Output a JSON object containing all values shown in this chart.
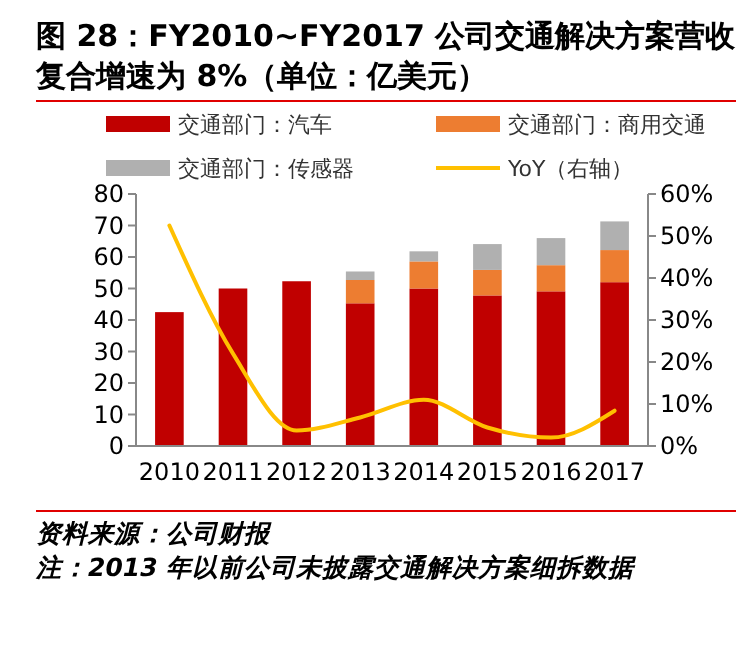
{
  "chart_data": {
    "type": "bar",
    "stacked": true,
    "title": "图 28：FY2010~FY2017 公司交通解决方案营收复合增速为 8%（单位：亿美元）",
    "categories": [
      "2010",
      "2011",
      "2012",
      "2013",
      "2014",
      "2015",
      "2016",
      "2017"
    ],
    "series": [
      {
        "name": "交通部门：汽车",
        "color": "#c00000",
        "values": [
          42.5,
          50,
          52.3,
          45.3,
          50,
          47.8,
          49.1,
          52
        ]
      },
      {
        "name": "交通部门：商用交通",
        "color": "#ed7d31",
        "values": [
          null,
          null,
          null,
          7.4,
          8.6,
          8.1,
          8.3,
          10.2
        ]
      },
      {
        "name": "交通部门：传感器",
        "color": "#b0b0b0",
        "values": [
          null,
          null,
          null,
          2.7,
          3.2,
          8.2,
          8.6,
          9.1
        ]
      },
      {
        "name": "YoY（右轴）",
        "type": "line",
        "axis": "y2",
        "color": "#ffc000",
        "values": [
          52.5,
          22,
          3.7,
          6.8,
          11,
          4.4,
          2,
          8.4
        ]
      }
    ],
    "ylim": [
      0,
      80
    ],
    "yticks": [
      0,
      10,
      20,
      30,
      40,
      50,
      60,
      70,
      80
    ],
    "y2lim": [
      0,
      60
    ],
    "y2ticks": [
      {
        "value": 0,
        "label": "0%"
      },
      {
        "value": 10,
        "label": "10%"
      },
      {
        "value": 20,
        "label": "20%"
      },
      {
        "value": 30,
        "label": "30%"
      },
      {
        "value": 40,
        "label": "40%"
      },
      {
        "value": 50,
        "label": "50%"
      },
      {
        "value": 60,
        "label": "60%"
      }
    ],
    "legend": "top",
    "grid": false,
    "annotations": [
      "资料来源：公司财报",
      "注：2013 年以前公司未披露交通解决方案细拆数据"
    ]
  }
}
